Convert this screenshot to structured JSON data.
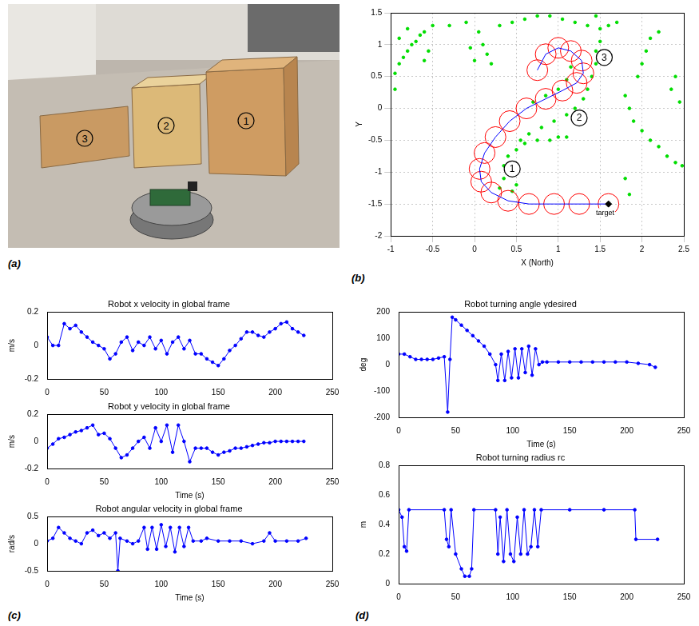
{
  "photo": {
    "panel_label": "(a)",
    "box_labels": [
      "3",
      "2",
      "1"
    ]
  },
  "chart_data": [
    {
      "panel_label": "(b)",
      "type": "scatter",
      "xlabel": "X (North)",
      "ylabel": "Y",
      "xlim": [
        -1,
        2.5
      ],
      "xticks": [
        -1,
        -0.5,
        0,
        0.5,
        1,
        1.5,
        2,
        2.5
      ],
      "ylim": [
        -2,
        1.5
      ],
      "yticks": [
        -2,
        -1.5,
        -1,
        -0.5,
        0,
        0.5,
        1,
        1.5
      ],
      "grid": true,
      "series": [
        {
          "type": "scatter",
          "color": "#00dd00",
          "marker": "dot",
          "x": [
            -0.95,
            -0.9,
            -0.85,
            -0.8,
            -0.75,
            -0.7,
            -0.65,
            -0.6,
            -0.9,
            -0.8,
            -0.95,
            -0.55,
            -0.6,
            -0.5,
            -0.3,
            -0.1,
            0.05,
            0.1,
            0.15,
            0.2,
            -0.05,
            0.0,
            0.3,
            0.45,
            0.6,
            0.75,
            0.9,
            1.05,
            1.2,
            1.35,
            1.5,
            1.6,
            1.7,
            1.45,
            1.5,
            1.45,
            1.45,
            1.4,
            1.35,
            1.3,
            1.2,
            1.1,
            0.95,
            0.8,
            0.65,
            0.55,
            0.7,
            0.85,
            1.0,
            1.1,
            1.15,
            0.3,
            0.35,
            0.35,
            0.4,
            0.5,
            0.6,
            0.75,
            0.9,
            1.0,
            1.1,
            0.5,
            0.45,
            1.8,
            1.85,
            1.9,
            2.0,
            2.1,
            2.2,
            2.3,
            2.4,
            2.48,
            1.95,
            2.0,
            2.05,
            2.1,
            2.2,
            2.35,
            2.4,
            2.45,
            1.8,
            1.85
          ],
          "values": [
            0.55,
            0.7,
            0.8,
            0.9,
            1.0,
            1.05,
            1.15,
            1.2,
            1.1,
            1.25,
            0.3,
            0.9,
            0.75,
            1.3,
            1.3,
            1.35,
            1.2,
            1.0,
            0.85,
            0.7,
            0.95,
            0.75,
            1.3,
            1.35,
            1.4,
            1.45,
            1.45,
            1.4,
            1.35,
            1.3,
            1.25,
            1.3,
            1.35,
            1.45,
            1.05,
            0.9,
            0.7,
            0.5,
            0.3,
            0.15,
            0.0,
            -0.1,
            -0.2,
            -0.3,
            -0.4,
            -0.5,
            0.1,
            0.2,
            0.3,
            0.45,
            0.65,
            -1.25,
            -1.1,
            -0.9,
            -0.75,
            -0.65,
            -0.55,
            -0.5,
            -0.5,
            -0.45,
            -0.45,
            -1.2,
            -1.3,
            0.2,
            0.0,
            -0.2,
            -0.35,
            -0.5,
            -0.6,
            -0.75,
            -0.85,
            -0.9,
            0.5,
            0.7,
            0.9,
            1.1,
            1.2,
            0.3,
            0.5,
            0.1,
            -1.1,
            -1.35
          ]
        },
        {
          "type": "scatter",
          "color": "#ff0000",
          "marker": "circle",
          "x": [
            0.75,
            0.85,
            1.0,
            1.15,
            1.28,
            1.3,
            1.22,
            1.05,
            0.85,
            0.62,
            0.42,
            0.25,
            0.12,
            0.06,
            0.08,
            0.2,
            0.4,
            0.65,
            0.95,
            1.25,
            1.6
          ],
          "values": [
            0.6,
            0.85,
            0.95,
            0.9,
            0.75,
            0.55,
            0.4,
            0.28,
            0.15,
            0.0,
            -0.2,
            -0.45,
            -0.7,
            -0.95,
            -1.15,
            -1.32,
            -1.45,
            -1.5,
            -1.5,
            -1.5,
            -1.5
          ]
        },
        {
          "type": "line",
          "color": "#0000ff",
          "marker": "none",
          "x": [
            0.75,
            0.85,
            1.0,
            1.15,
            1.28,
            1.3,
            1.22,
            1.05,
            0.85,
            0.62,
            0.42,
            0.25,
            0.12,
            0.06,
            0.08,
            0.2,
            0.4,
            0.65,
            0.95,
            1.25,
            1.6
          ],
          "values": [
            0.6,
            0.85,
            0.95,
            0.9,
            0.75,
            0.55,
            0.4,
            0.28,
            0.15,
            0.0,
            -0.2,
            -0.45,
            -0.7,
            -0.95,
            -1.15,
            -1.32,
            -1.45,
            -1.5,
            -1.5,
            -1.5,
            -1.5
          ]
        },
        {
          "type": "scatter",
          "color": "#000000",
          "marker": "diamond",
          "x": [
            1.6
          ],
          "values": [
            -1.5
          ]
        }
      ],
      "annotations": [
        {
          "text": "1",
          "x": 0.45,
          "y": -0.95,
          "marker": "circle"
        },
        {
          "text": "2",
          "x": 1.25,
          "y": -0.15,
          "marker": "circle"
        },
        {
          "text": "3",
          "x": 1.55,
          "y": 0.8,
          "marker": "circle"
        },
        {
          "text": "target",
          "x": 1.45,
          "y": -1.58
        }
      ]
    },
    {
      "panel_label": "(c)",
      "type": "line",
      "title": "Robot x velocity in global frame",
      "ylabel": "m/s",
      "xlim": [
        0,
        250
      ],
      "xticks": [
        0,
        50,
        100,
        150,
        200,
        250
      ],
      "ylim": [
        -0.2,
        0.2
      ],
      "yticks": [
        -0.2,
        0,
        0.2
      ],
      "grid": false,
      "color": "#0000ff",
      "marker": "dot",
      "x": [
        0,
        5,
        10,
        15,
        20,
        25,
        30,
        35,
        40,
        45,
        50,
        55,
        60,
        65,
        70,
        75,
        80,
        85,
        90,
        95,
        100,
        105,
        110,
        115,
        120,
        125,
        130,
        135,
        140,
        145,
        150,
        155,
        160,
        165,
        170,
        175,
        180,
        185,
        190,
        195,
        200,
        205,
        210,
        215,
        220,
        225
      ],
      "values": [
        0.05,
        0.0,
        0.0,
        0.13,
        0.1,
        0.12,
        0.08,
        0.05,
        0.02,
        0.0,
        -0.02,
        -0.08,
        -0.05,
        0.02,
        0.05,
        -0.03,
        0.02,
        0.0,
        0.05,
        -0.02,
        0.03,
        -0.05,
        0.02,
        0.05,
        -0.02,
        0.03,
        -0.05,
        -0.05,
        -0.08,
        -0.1,
        -0.12,
        -0.08,
        -0.03,
        0.0,
        0.04,
        0.08,
        0.08,
        0.06,
        0.05,
        0.08,
        0.1,
        0.13,
        0.14,
        0.1,
        0.08,
        0.06
      ]
    },
    {
      "type": "line",
      "title": "Robot y velocity in global frame",
      "ylabel": "m/s",
      "xlabel": "Time (s)",
      "xlim": [
        0,
        250
      ],
      "xticks": [
        0,
        50,
        100,
        150,
        200,
        250
      ],
      "ylim": [
        -0.2,
        0.2
      ],
      "yticks": [
        -0.2,
        0,
        0.2
      ],
      "grid": false,
      "color": "#0000ff",
      "marker": "dot",
      "x": [
        0,
        5,
        10,
        15,
        20,
        25,
        30,
        35,
        40,
        45,
        50,
        55,
        60,
        65,
        70,
        75,
        80,
        85,
        90,
        95,
        100,
        105,
        110,
        115,
        120,
        125,
        130,
        135,
        140,
        145,
        150,
        155,
        160,
        165,
        170,
        175,
        180,
        185,
        190,
        195,
        200,
        205,
        210,
        215,
        220,
        225
      ],
      "values": [
        -0.05,
        -0.02,
        0.02,
        0.03,
        0.05,
        0.07,
        0.08,
        0.1,
        0.12,
        0.05,
        0.06,
        0.02,
        -0.05,
        -0.12,
        -0.1,
        -0.05,
        0.0,
        0.03,
        -0.05,
        0.1,
        0.0,
        0.12,
        -0.08,
        0.12,
        0.0,
        -0.15,
        -0.05,
        -0.05,
        -0.05,
        -0.08,
        -0.1,
        -0.08,
        -0.07,
        -0.05,
        -0.05,
        -0.04,
        -0.03,
        -0.02,
        -0.01,
        -0.01,
        0.0,
        0.0,
        0.0,
        0.0,
        0.0,
        0.0
      ]
    },
    {
      "type": "line",
      "title": "Robot angular velocity in global frame",
      "ylabel": "rad/s",
      "xlabel": "Time (s)",
      "xlim": [
        0,
        250
      ],
      "xticks": [
        0,
        50,
        100,
        150,
        200,
        250
      ],
      "ylim": [
        -0.5,
        0.5
      ],
      "yticks": [
        -0.5,
        0,
        0.5
      ],
      "grid": false,
      "color": "#0000ff",
      "marker": "dot",
      "x": [
        0,
        5,
        10,
        15,
        20,
        25,
        30,
        35,
        40,
        45,
        50,
        55,
        60,
        62,
        64,
        70,
        75,
        80,
        85,
        88,
        92,
        96,
        100,
        104,
        108,
        112,
        116,
        120,
        124,
        128,
        135,
        140,
        150,
        160,
        170,
        180,
        190,
        195,
        200,
        210,
        220,
        227
      ],
      "values": [
        0.05,
        0.1,
        0.3,
        0.2,
        0.1,
        0.05,
        0.0,
        0.2,
        0.25,
        0.15,
        0.2,
        0.1,
        0.2,
        -0.5,
        0.1,
        0.05,
        0.0,
        0.05,
        0.3,
        -0.1,
        0.3,
        -0.1,
        0.35,
        -0.05,
        0.3,
        -0.15,
        0.3,
        -0.05,
        0.3,
        0.05,
        0.05,
        0.1,
        0.05,
        0.05,
        0.05,
        0.0,
        0.05,
        0.2,
        0.05,
        0.05,
        0.05,
        0.1
      ]
    },
    {
      "panel_label": "(d)",
      "type": "line",
      "title": "Robot turning angle γdesired",
      "ylabel": "deg",
      "xlabel": "Time (s)",
      "xlim": [
        0,
        250
      ],
      "xticks": [
        0,
        50,
        100,
        150,
        200,
        250
      ],
      "ylim": [
        -200,
        200
      ],
      "yticks": [
        -200,
        -100,
        0,
        100,
        200
      ],
      "grid": false,
      "color": "#0000ff",
      "marker": "dot",
      "x": [
        0,
        5,
        10,
        15,
        20,
        25,
        30,
        35,
        40,
        43,
        45,
        47,
        50,
        55,
        60,
        65,
        70,
        75,
        80,
        85,
        87,
        90,
        93,
        96,
        99,
        102,
        105,
        108,
        111,
        114,
        117,
        120,
        123,
        126,
        130,
        140,
        150,
        160,
        170,
        180,
        190,
        200,
        210,
        220,
        225
      ],
      "values": [
        40,
        40,
        30,
        20,
        20,
        20,
        20,
        25,
        30,
        -180,
        20,
        180,
        170,
        150,
        130,
        110,
        90,
        70,
        40,
        0,
        -60,
        40,
        -60,
        50,
        -50,
        60,
        -50,
        60,
        -30,
        70,
        -40,
        60,
        0,
        10,
        10,
        10,
        10,
        10,
        10,
        10,
        10,
        10,
        5,
        0,
        -10
      ]
    },
    {
      "type": "line",
      "title": "Robot turning radius rc",
      "ylabel": "m",
      "xlim": [
        0,
        250
      ],
      "xticks": [
        0,
        50,
        100,
        150,
        200,
        250
      ],
      "ylim": [
        0,
        0.8
      ],
      "yticks": [
        0,
        0.2,
        0.4,
        0.6,
        0.8
      ],
      "grid": false,
      "color": "#0000ff",
      "marker": "dot",
      "x": [
        0,
        3,
        5,
        7,
        9,
        40,
        42,
        44,
        46,
        50,
        55,
        58,
        62,
        64,
        66,
        85,
        87,
        89,
        92,
        95,
        98,
        101,
        104,
        107,
        110,
        113,
        116,
        119,
        122,
        125,
        150,
        180,
        207,
        208,
        227
      ],
      "values": [
        0.5,
        0.45,
        0.25,
        0.22,
        0.5,
        0.5,
        0.3,
        0.25,
        0.5,
        0.2,
        0.1,
        0.05,
        0.05,
        0.1,
        0.5,
        0.5,
        0.2,
        0.45,
        0.15,
        0.5,
        0.2,
        0.15,
        0.45,
        0.2,
        0.5,
        0.2,
        0.25,
        0.5,
        0.25,
        0.5,
        0.5,
        0.5,
        0.5,
        0.3,
        0.3
      ]
    }
  ]
}
